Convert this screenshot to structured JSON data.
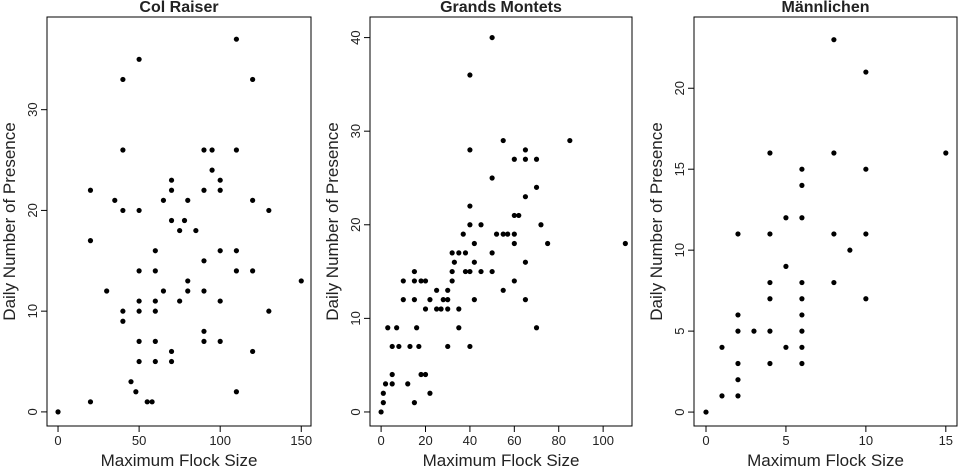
{
  "chart_data": [
    {
      "type": "scatter",
      "title": "Col Raiser",
      "x_label": "Maximum Flock Size",
      "y_label": "Daily Number of Presence",
      "color": "#000000",
      "x": [
        0,
        20,
        20,
        20,
        30,
        35,
        40,
        40,
        40,
        40,
        40,
        45,
        48,
        50,
        50,
        50,
        50,
        50,
        50,
        50,
        55,
        58,
        60,
        60,
        60,
        60,
        60,
        60,
        65,
        65,
        70,
        70,
        70,
        70,
        70,
        75,
        75,
        78,
        80,
        80,
        80,
        85,
        90,
        90,
        90,
        90,
        90,
        90,
        95,
        95,
        100,
        100,
        100,
        100,
        100,
        110,
        110,
        110,
        110,
        110,
        120,
        120,
        120,
        120,
        130,
        130,
        150
      ],
      "values": [
        0,
        22,
        17,
        1,
        12,
        21,
        33,
        26,
        20,
        10,
        9,
        3,
        2,
        35,
        20,
        14,
        11,
        10,
        7,
        5,
        1,
        1,
        16,
        14,
        11,
        10,
        7,
        5,
        12,
        21,
        23,
        22,
        19,
        6,
        5,
        18,
        11,
        19,
        21,
        13,
        12,
        18,
        26,
        22,
        15,
        12,
        8,
        7,
        24,
        26,
        23,
        22,
        16,
        11,
        7,
        37,
        26,
        16,
        14,
        2,
        33,
        21,
        14,
        6,
        20,
        10,
        13
      ],
      "xlim": [
        -6.8,
        156
      ],
      "ylim": [
        -1.4,
        39.2
      ],
      "xticks": [
        0,
        50,
        100,
        150
      ],
      "yticks": [
        0,
        10,
        20,
        30
      ]
    },
    {
      "type": "scatter",
      "title": "Grands Montets",
      "x_label": "Maximum Flock Size",
      "y_label": "Daily Number of Presence",
      "color": "#000000",
      "x": [
        0,
        1,
        1,
        2,
        3,
        5,
        5,
        5,
        7,
        8,
        10,
        10,
        12,
        13,
        15,
        15,
        15,
        15,
        16,
        17,
        18,
        18,
        20,
        20,
        20,
        22,
        22,
        25,
        25,
        27,
        28,
        30,
        30,
        30,
        30,
        32,
        32,
        32,
        33,
        35,
        35,
        35,
        37,
        38,
        38,
        40,
        40,
        40,
        40,
        40,
        40,
        42,
        42,
        42,
        45,
        45,
        50,
        50,
        50,
        50,
        52,
        55,
        55,
        55,
        57,
        60,
        60,
        60,
        60,
        60,
        62,
        65,
        65,
        65,
        65,
        65,
        70,
        70,
        70,
        72,
        75,
        85,
        110
      ],
      "values": [
        0,
        1,
        2,
        3,
        9,
        3,
        4,
        7,
        9,
        7,
        12,
        14,
        3,
        7,
        15,
        14,
        12,
        1,
        9,
        7,
        14,
        4,
        4,
        14,
        11,
        2,
        12,
        11,
        13,
        11,
        12,
        13,
        12,
        11,
        7,
        17,
        15,
        14,
        16,
        17,
        9,
        11,
        19,
        15,
        17,
        20,
        22,
        28,
        36,
        7,
        15,
        12,
        18,
        16,
        20,
        15,
        40,
        25,
        17,
        15,
        19,
        29,
        19,
        13,
        19,
        27,
        21,
        19,
        14,
        18,
        21,
        28,
        27,
        23,
        16,
        12,
        27,
        24,
        9,
        20,
        18,
        29,
        18
      ],
      "xlim": [
        -5,
        113
      ],
      "ylim": [
        -1.5,
        42.2
      ],
      "xticks": [
        0,
        20,
        40,
        60,
        80,
        100
      ],
      "yticks": [
        0,
        10,
        20,
        30,
        40
      ]
    },
    {
      "type": "scatter",
      "title": "Männlichen",
      "x_label": "Maximum Flock Size",
      "y_label": "Daily Number of Presence",
      "color": "#000000",
      "x": [
        0,
        1,
        1,
        2,
        2,
        2,
        2,
        2,
        2,
        3,
        4,
        4,
        4,
        4,
        4,
        4,
        5,
        5,
        5,
        6,
        6,
        6,
        6,
        6,
        6,
        6,
        6,
        6,
        8,
        8,
        8,
        8,
        9,
        10,
        10,
        10,
        10,
        15
      ],
      "values": [
        0,
        1,
        4,
        11,
        6,
        5,
        3,
        2,
        1,
        5,
        16,
        11,
        8,
        7,
        5,
        3,
        12,
        9,
        4,
        15,
        14,
        12,
        8,
        7,
        6,
        5,
        4,
        3,
        23,
        16,
        11,
        8,
        10,
        21,
        15,
        11,
        7,
        16
      ],
      "xlim": [
        -0.75,
        15.7
      ],
      "ylim": [
        -0.86,
        24.4
      ],
      "xticks": [
        0,
        5,
        10,
        15
      ],
      "yticks": [
        0,
        5,
        10,
        15,
        20
      ]
    }
  ]
}
